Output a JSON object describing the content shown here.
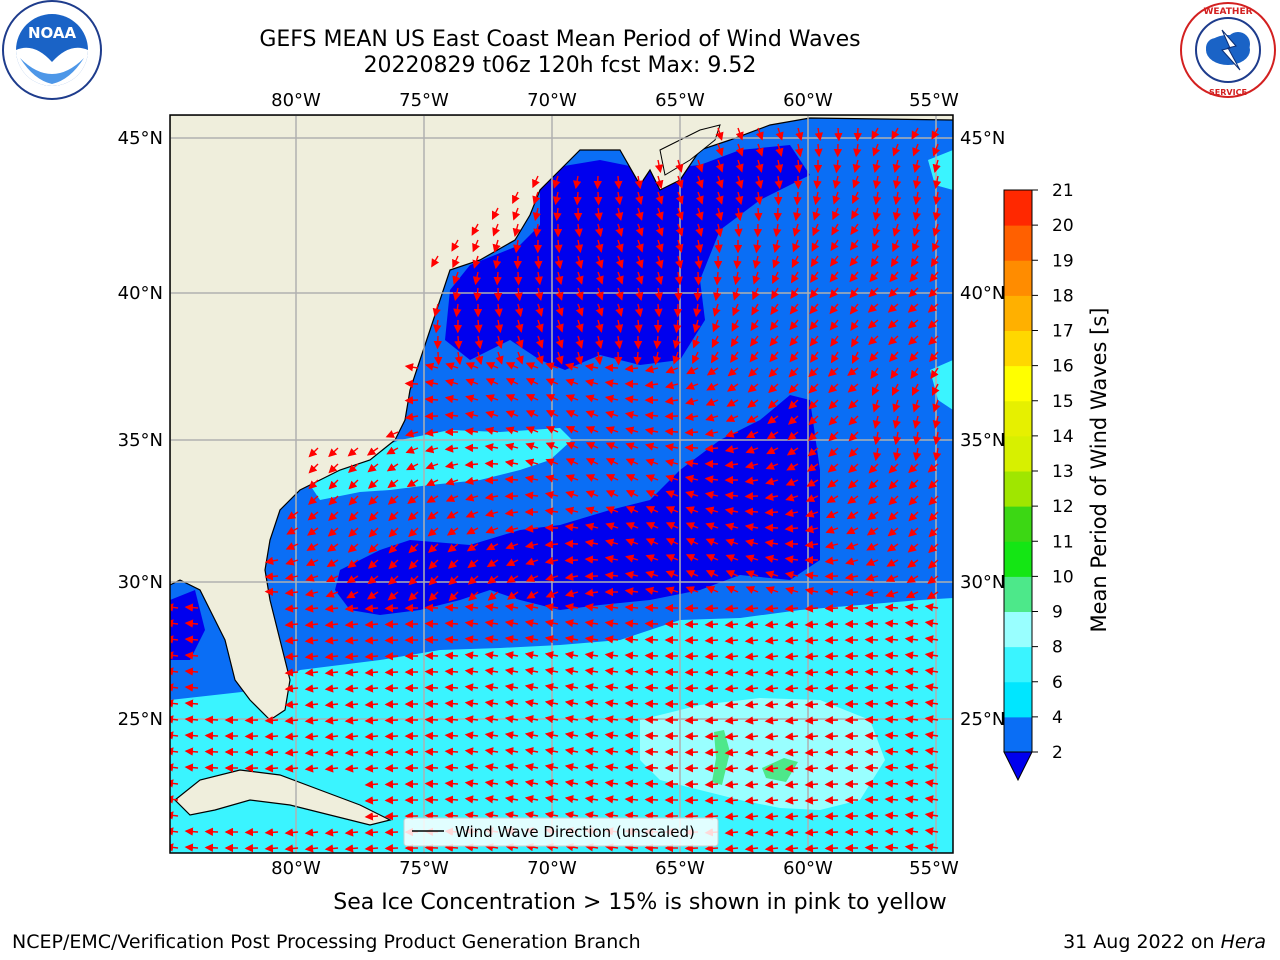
{
  "title_line1": "GEFS MEAN US East Coast Mean Period of Wind Waves",
  "title_line2": "20220829 t06z 120h fcst   Max: 9.52",
  "subtitle": "Sea Ice Concentration > 15% is shown in pink to yellow",
  "footer_left": "NCEP/EMC/Verification Post Processing Product Generation Branch",
  "footer_date": "31 Aug 2022 on ",
  "footer_machine": "Hera",
  "logos": {
    "left": "NOAA",
    "right": "NATIONAL WEATHER SERVICE"
  },
  "map": {
    "lon_labels": [
      "80°W",
      "75°W",
      "70°W",
      "65°W",
      "60°W",
      "55°W"
    ],
    "lat_labels": [
      "45°N",
      "40°N",
      "35°N",
      "30°N",
      "25°N"
    ],
    "legend_label": "Wind Wave Direction (unscaled)",
    "colors": {
      "land": "#efeedc",
      "arrow": "#ff0000",
      "grid": "#b0b0b0"
    }
  },
  "colorbar": {
    "label": "Mean Period of Wind Waves [s]",
    "ticks": [
      "2",
      "4",
      "6",
      "8",
      "9",
      "10",
      "11",
      "12",
      "13",
      "14",
      "15",
      "16",
      "17",
      "18",
      "19",
      "20",
      "21"
    ],
    "colors": [
      "#0a6ef5",
      "#00e6ff",
      "#3af4ff",
      "#99ffff",
      "#4de88a",
      "#14e614",
      "#3cd714",
      "#a0e600",
      "#d7f000",
      "#e6f000",
      "#ffff00",
      "#ffd700",
      "#ffb000",
      "#ff8c00",
      "#ff6000",
      "#ff2800"
    ],
    "extend_min_color": "#0000ee"
  }
}
